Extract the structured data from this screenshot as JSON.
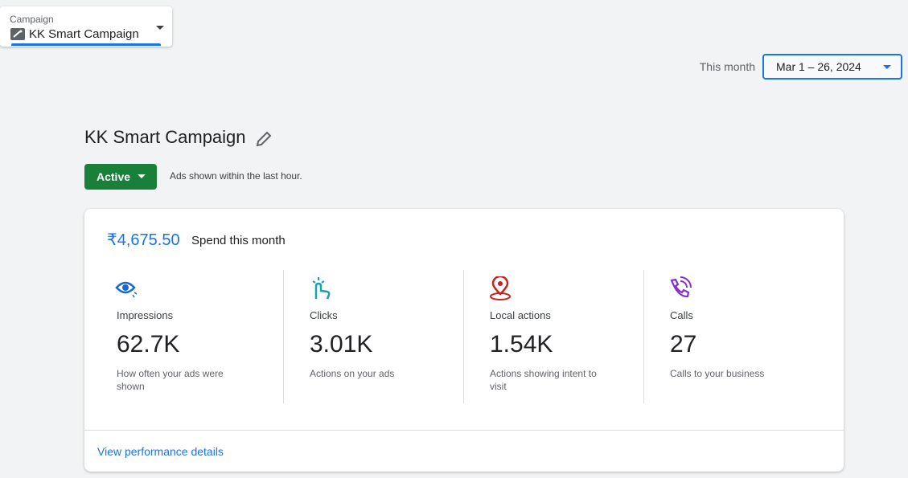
{
  "campaign_selector": {
    "label": "Campaign",
    "value": "KK Smart Campaign"
  },
  "date_range": {
    "label": "This month",
    "value": "Mar 1 – 26, 2024"
  },
  "campaign": {
    "title": "KK Smart Campaign",
    "status": "Active",
    "status_note": "Ads shown within the last hour."
  },
  "summary": {
    "spend": "₹4,675.50",
    "spend_label": "Spend this month",
    "metrics": [
      {
        "name": "Impressions",
        "value": "62.7K",
        "description": "How often your ads were shown"
      },
      {
        "name": "Clicks",
        "value": "3.01K",
        "description": "Actions on your ads"
      },
      {
        "name": "Local actions",
        "value": "1.54K",
        "description": "Actions showing intent to visit"
      },
      {
        "name": "Calls",
        "value": "27",
        "description": "Calls to your business"
      }
    ],
    "link": "View performance details"
  }
}
